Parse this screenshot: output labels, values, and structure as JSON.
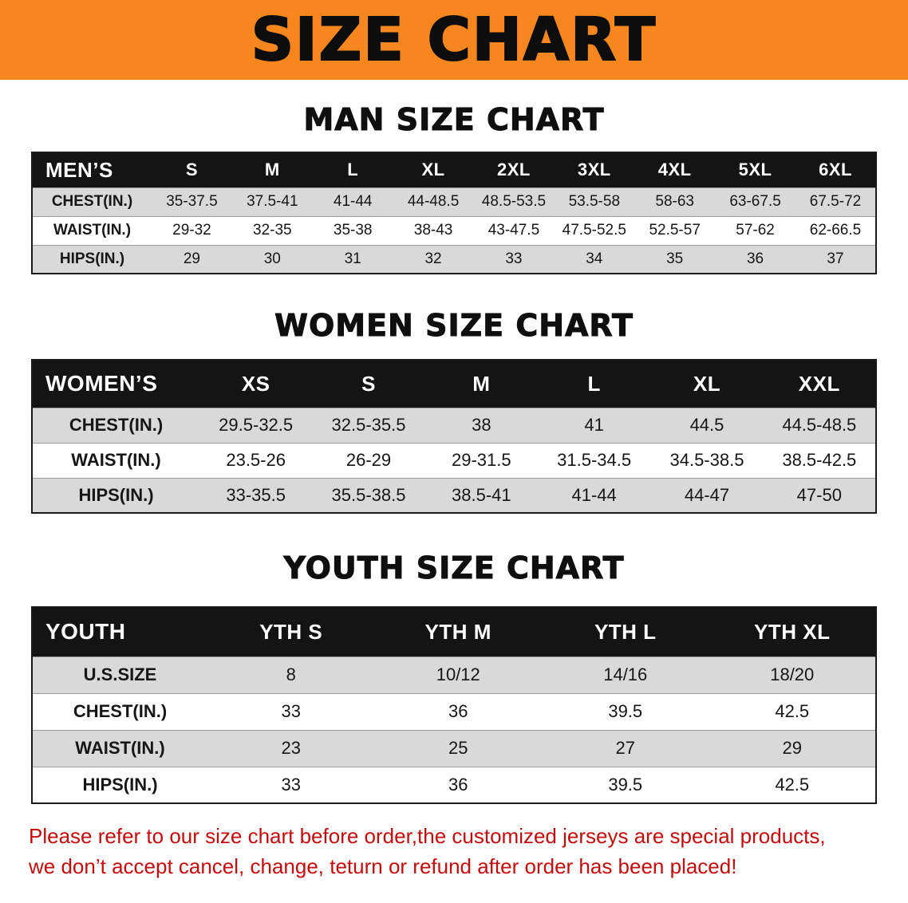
{
  "banner": {
    "title": "SIZE CHART"
  },
  "colors": {
    "banner_bg": "#f6871f",
    "table_header_bg": "#141414",
    "row_stripe": "#d9d9d9",
    "footnote_red": "#c40b0b"
  },
  "chart_data": [
    {
      "type": "table",
      "title": "MAN SIZE CHART",
      "columns": [
        "MEN’S",
        "S",
        "M",
        "L",
        "XL",
        "2XL",
        "3XL",
        "4XL",
        "5XL",
        "6XL"
      ],
      "rows": [
        [
          "CHEST(IN.)",
          "35-37.5",
          "37.5-41",
          "41-44",
          "44-48.5",
          "48.5-53.5",
          "53.5-58",
          "58-63",
          "63-67.5",
          "67.5-72"
        ],
        [
          "WAIST(IN.)",
          "29-32",
          "32-35",
          "35-38",
          "38-43",
          "43-47.5",
          "47.5-52.5",
          "52.5-57",
          "57-62",
          "62-66.5"
        ],
        [
          "HIPS(IN.)",
          "29",
          "30",
          "31",
          "32",
          "33",
          "34",
          "35",
          "36",
          "37"
        ]
      ]
    },
    {
      "type": "table",
      "title": "WOMEN SIZE CHART",
      "columns": [
        "WOMEN’S",
        "XS",
        "S",
        "M",
        "L",
        "XL",
        "XXL"
      ],
      "rows": [
        [
          "CHEST(IN.)",
          "29.5-32.5",
          "32.5-35.5",
          "38",
          "41",
          "44.5",
          "44.5-48.5"
        ],
        [
          "WAIST(IN.)",
          "23.5-26",
          "26-29",
          "29-31.5",
          "31.5-34.5",
          "34.5-38.5",
          "38.5-42.5"
        ],
        [
          "HIPS(IN.)",
          "33-35.5",
          "35.5-38.5",
          "38.5-41",
          "41-44",
          "44-47",
          "47-50"
        ]
      ]
    },
    {
      "type": "table",
      "title": "YOUTH SIZE CHART",
      "columns": [
        "YOUTH",
        "YTH S",
        "YTH M",
        "YTH L",
        "YTH XL"
      ],
      "rows": [
        [
          "U.S.SIZE",
          "8",
          "10/12",
          "14/16",
          "18/20"
        ],
        [
          "CHEST(IN.)",
          "33",
          "36",
          "39.5",
          "42.5"
        ],
        [
          "WAIST(IN.)",
          "23",
          "25",
          "27",
          "29"
        ],
        [
          "HIPS(IN.)",
          "33",
          "36",
          "39.5",
          "42.5"
        ]
      ]
    }
  ],
  "footnote": {
    "lines": [
      "Please refer to our size chart before order,the customized jerseys are special products,",
      "we don’t accept cancel, change, teturn or refund after order has been placed!"
    ]
  }
}
